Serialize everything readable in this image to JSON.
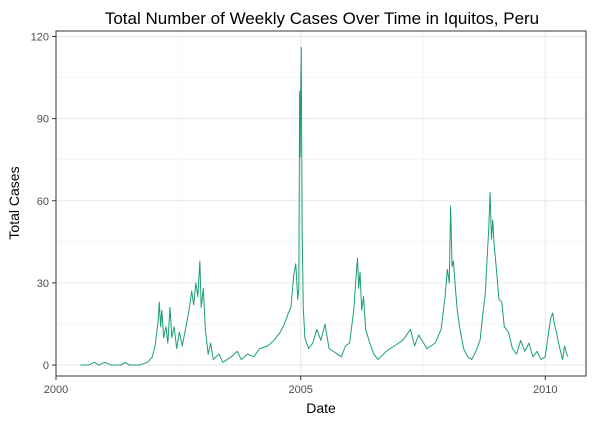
{
  "chart_data": {
    "type": "line",
    "title": "Total Number of Weekly Cases Over Time in Iquitos, Peru",
    "xlabel": "Date",
    "ylabel": "Total Cases",
    "xlim": [
      "2000-01-01",
      "2010-11-01"
    ],
    "ylim": [
      -4,
      122
    ],
    "x_ticks": [
      {
        "date": "2000-01-01",
        "label": "2000"
      },
      {
        "date": "2005-01-01",
        "label": "2005"
      },
      {
        "date": "2010-01-01",
        "label": "2010"
      }
    ],
    "y_ticks": [
      0,
      30,
      60,
      90,
      120
    ],
    "grid": true,
    "legend": "none",
    "line_color": "#1b9e77",
    "series": [
      {
        "points": [
          [
            "2000-07-01",
            0
          ],
          [
            "2000-09-01",
            0
          ],
          [
            "2000-10-15",
            1
          ],
          [
            "2000-11-15",
            0
          ],
          [
            "2001-01-01",
            1
          ],
          [
            "2001-02-15",
            0
          ],
          [
            "2001-05-01",
            0
          ],
          [
            "2001-06-01",
            1
          ],
          [
            "2001-07-01",
            0
          ],
          [
            "2001-09-15",
            0
          ],
          [
            "2001-11-15",
            1
          ],
          [
            "2001-12-20",
            3
          ],
          [
            "2002-01-10",
            7
          ],
          [
            "2002-02-01",
            16
          ],
          [
            "2002-02-10",
            23
          ],
          [
            "2002-02-20",
            14
          ],
          [
            "2002-03-01",
            20
          ],
          [
            "2002-03-15",
            10
          ],
          [
            "2002-04-01",
            14
          ],
          [
            "2002-04-15",
            8
          ],
          [
            "2002-05-01",
            21
          ],
          [
            "2002-05-15",
            10
          ],
          [
            "2002-06-01",
            14
          ],
          [
            "2002-06-20",
            6
          ],
          [
            "2002-07-10",
            12
          ],
          [
            "2002-08-01",
            7
          ],
          [
            "2002-09-01",
            15
          ],
          [
            "2002-09-20",
            20
          ],
          [
            "2002-10-10",
            27
          ],
          [
            "2002-10-25",
            22
          ],
          [
            "2002-11-10",
            30
          ],
          [
            "2002-11-25",
            25
          ],
          [
            "2002-12-10",
            38
          ],
          [
            "2002-12-20",
            21
          ],
          [
            "2003-01-05",
            28
          ],
          [
            "2003-01-20",
            13
          ],
          [
            "2003-02-10",
            4
          ],
          [
            "2003-03-01",
            8
          ],
          [
            "2003-03-20",
            2
          ],
          [
            "2003-05-01",
            4
          ],
          [
            "2003-06-01",
            1
          ],
          [
            "2003-08-01",
            3
          ],
          [
            "2003-09-15",
            5
          ],
          [
            "2003-10-15",
            2
          ],
          [
            "2003-12-01",
            4
          ],
          [
            "2004-01-15",
            3
          ],
          [
            "2004-03-01",
            6
          ],
          [
            "2004-05-01",
            7
          ],
          [
            "2004-06-15",
            9
          ],
          [
            "2004-08-01",
            12
          ],
          [
            "2004-09-01",
            15
          ],
          [
            "2004-10-01",
            19
          ],
          [
            "2004-10-20",
            21
          ],
          [
            "2004-11-10",
            33
          ],
          [
            "2004-11-25",
            37
          ],
          [
            "2004-12-10",
            24
          ],
          [
            "2004-12-18",
            28
          ],
          [
            "2004-12-24",
            100
          ],
          [
            "2004-12-28",
            76
          ],
          [
            "2005-01-01",
            98
          ],
          [
            "2005-01-05",
            116
          ],
          [
            "2005-01-12",
            49
          ],
          [
            "2005-01-20",
            21
          ],
          [
            "2005-02-01",
            10
          ],
          [
            "2005-03-01",
            6
          ],
          [
            "2005-04-01",
            8
          ],
          [
            "2005-05-01",
            13
          ],
          [
            "2005-06-01",
            9
          ],
          [
            "2005-07-01",
            15
          ],
          [
            "2005-08-01",
            6
          ],
          [
            "2005-09-01",
            5
          ],
          [
            "2005-10-01",
            4
          ],
          [
            "2005-11-01",
            3
          ],
          [
            "2005-12-01",
            7
          ],
          [
            "2006-01-01",
            8
          ],
          [
            "2006-02-01",
            20
          ],
          [
            "2006-02-15",
            30
          ],
          [
            "2006-03-01",
            39
          ],
          [
            "2006-03-10",
            28
          ],
          [
            "2006-03-20",
            34
          ],
          [
            "2006-04-01",
            20
          ],
          [
            "2006-04-15",
            25
          ],
          [
            "2006-05-01",
            13
          ],
          [
            "2006-06-01",
            8
          ],
          [
            "2006-07-01",
            4
          ],
          [
            "2006-08-01",
            2
          ],
          [
            "2006-10-01",
            5
          ],
          [
            "2006-12-01",
            7
          ],
          [
            "2007-02-01",
            9
          ],
          [
            "2007-04-01",
            13
          ],
          [
            "2007-05-01",
            7
          ],
          [
            "2007-06-01",
            11
          ],
          [
            "2007-08-01",
            6
          ],
          [
            "2007-10-01",
            8
          ],
          [
            "2007-11-15",
            13
          ],
          [
            "2007-12-15",
            25
          ],
          [
            "2008-01-01",
            35
          ],
          [
            "2008-01-15",
            30
          ],
          [
            "2008-01-25",
            58
          ],
          [
            "2008-02-05",
            36
          ],
          [
            "2008-02-15",
            38
          ],
          [
            "2008-03-01",
            28
          ],
          [
            "2008-03-15",
            20
          ],
          [
            "2008-04-01",
            14
          ],
          [
            "2008-05-01",
            6
          ],
          [
            "2008-06-01",
            3
          ],
          [
            "2008-07-01",
            2
          ],
          [
            "2008-08-01",
            5
          ],
          [
            "2008-09-01",
            9
          ],
          [
            "2008-09-20",
            18
          ],
          [
            "2008-10-10",
            26
          ],
          [
            "2008-10-25",
            40
          ],
          [
            "2008-11-05",
            50
          ],
          [
            "2008-11-15",
            63
          ],
          [
            "2008-11-25",
            46
          ],
          [
            "2008-12-05",
            53
          ],
          [
            "2008-12-15",
            44
          ],
          [
            "2009-01-01",
            35
          ],
          [
            "2009-01-20",
            24
          ],
          [
            "2009-02-10",
            23
          ],
          [
            "2009-03-01",
            14
          ],
          [
            "2009-04-01",
            12
          ],
          [
            "2009-05-01",
            6
          ],
          [
            "2009-06-01",
            4
          ],
          [
            "2009-07-01",
            9
          ],
          [
            "2009-08-01",
            5
          ],
          [
            "2009-09-01",
            8
          ],
          [
            "2009-10-01",
            3
          ],
          [
            "2009-11-01",
            5
          ],
          [
            "2009-12-01",
            2
          ],
          [
            "2010-01-01",
            3
          ],
          [
            "2010-01-20",
            10
          ],
          [
            "2010-02-10",
            17
          ],
          [
            "2010-02-25",
            19
          ],
          [
            "2010-03-10",
            15
          ],
          [
            "2010-03-25",
            12
          ],
          [
            "2010-04-10",
            8
          ],
          [
            "2010-04-25",
            5
          ],
          [
            "2010-05-10",
            2
          ],
          [
            "2010-05-25",
            7
          ],
          [
            "2010-06-10",
            4
          ],
          [
            "2010-06-20",
            3
          ]
        ]
      }
    ]
  }
}
